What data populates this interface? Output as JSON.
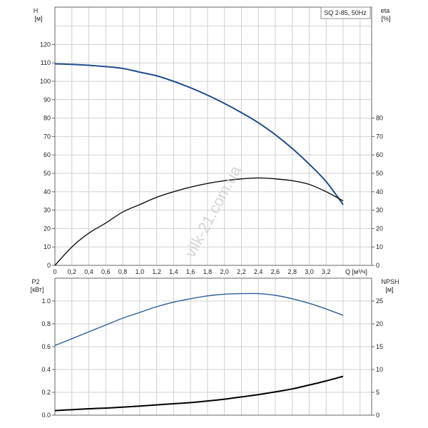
{
  "chart_data": [
    {
      "type": "line",
      "title": "SQ 2-85, 50Hz",
      "xlabel": "Q [м³/ч]",
      "ylabel_left": [
        "H",
        "[м]"
      ],
      "ylabel_right": [
        "eta",
        "[%]"
      ],
      "xlim": [
        0,
        3.73
      ],
      "ylim_left": [
        0,
        140
      ],
      "ylim_right": [
        0,
        140
      ],
      "x_ticks": [
        "0",
        "0,2",
        "0,4",
        "0,6",
        "0,8",
        "1,0",
        "1,2",
        "1,4",
        "1,6",
        "1,8",
        "2,0",
        "2,2",
        "2,4",
        "2,6",
        "2,8",
        "3,0",
        "3,2"
      ],
      "y_ticks_left": [
        0,
        10,
        20,
        30,
        40,
        50,
        60,
        70,
        80,
        90,
        100,
        110,
        120
      ],
      "y_ticks_right": [
        0,
        10,
        20,
        30,
        40,
        50,
        60,
        70,
        80
      ],
      "grid": true,
      "x": [
        0,
        0.2,
        0.4,
        0.6,
        0.8,
        1.0,
        1.2,
        1.4,
        1.6,
        1.8,
        2.0,
        2.2,
        2.4,
        2.6,
        2.8,
        3.0,
        3.2,
        3.4
      ],
      "series": [
        {
          "name": "H",
          "axis": "left",
          "color": "#1f4e8c",
          "values": [
            109.5,
            109.2,
            108.7,
            108,
            107,
            105,
            103,
            100,
            96.5,
            92.5,
            88,
            83,
            77.5,
            71,
            63.5,
            55,
            45.5,
            33
          ]
        },
        {
          "name": "eta",
          "axis": "right",
          "color": "#111111",
          "values": [
            0,
            10,
            17.5,
            23,
            29,
            33,
            37,
            40,
            42.5,
            44.5,
            46,
            47,
            47.5,
            47,
            46,
            44,
            40,
            35
          ]
        }
      ]
    },
    {
      "type": "line",
      "xlim": [
        0,
        3.73
      ],
      "ylabel_left": [
        "P2",
        "[кВт]"
      ],
      "ylabel_right": [
        "NPSH",
        "[м]"
      ],
      "ylim_left": [
        0,
        1.2
      ],
      "ylim_right": [
        0,
        30
      ],
      "y_ticks_left": [
        "0.0",
        "0.2",
        "0.4",
        "0.6",
        "0.8",
        "1.0"
      ],
      "y_ticks_right": [
        0,
        5,
        10,
        15,
        20,
        25
      ],
      "grid": true,
      "x": [
        0,
        0.2,
        0.4,
        0.6,
        0.8,
        1.0,
        1.2,
        1.4,
        1.6,
        1.8,
        2.0,
        2.2,
        2.4,
        2.6,
        2.8,
        3.0,
        3.2,
        3.4
      ],
      "series": [
        {
          "name": "P2",
          "axis": "left",
          "color": "#2a5d9a",
          "values": [
            0.61,
            0.67,
            0.73,
            0.79,
            0.85,
            0.9,
            0.95,
            0.99,
            1.02,
            1.045,
            1.06,
            1.065,
            1.065,
            1.05,
            1.02,
            0.98,
            0.93,
            0.875
          ]
        },
        {
          "name": "NPSH",
          "axis": "right",
          "color": "#000000",
          "values": [
            1.0,
            1.2,
            1.4,
            1.55,
            1.75,
            2.0,
            2.25,
            2.5,
            2.75,
            3.1,
            3.5,
            4.0,
            4.5,
            5.1,
            5.75,
            6.6,
            7.5,
            8.5
          ]
        }
      ]
    }
  ],
  "watermark": "vilk-21.com.ua"
}
